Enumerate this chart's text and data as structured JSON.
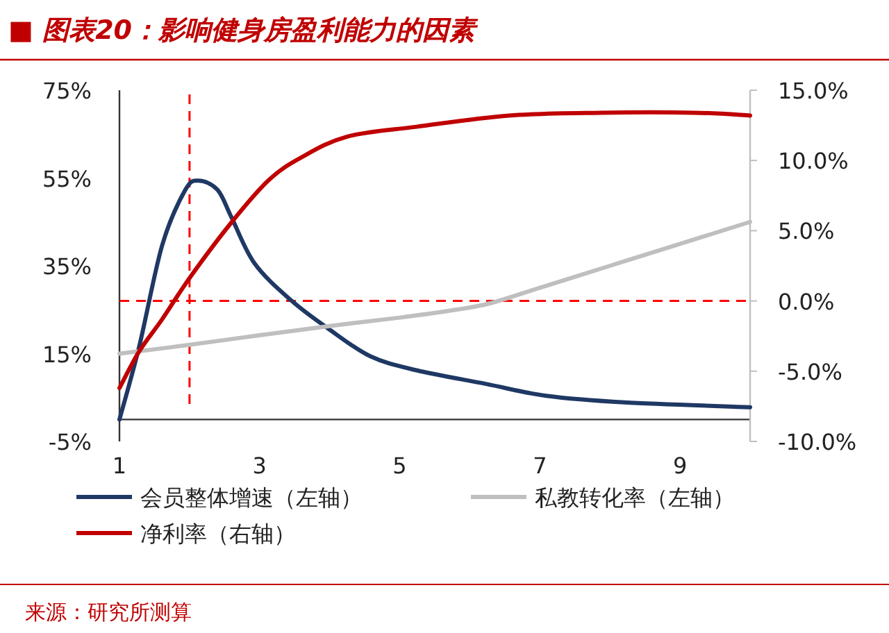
{
  "chart_data": {
    "type": "line",
    "title": "■ 图表20：影响健身房盈利能力的因素",
    "xlim": [
      1,
      10
    ],
    "xticks": [
      1,
      3,
      5,
      7,
      9
    ],
    "ylim": [
      -5,
      75
    ],
    "yticks": [
      {
        "value": -5,
        "label": "-5%"
      },
      {
        "value": 15,
        "label": "15%"
      },
      {
        "value": 35,
        "label": "35%"
      },
      {
        "value": 55,
        "label": "55%"
      },
      {
        "value": 75,
        "label": "75%"
      }
    ],
    "y2lim": [
      -10,
      15
    ],
    "y2ticks": [
      {
        "value": -10,
        "label": "-10.0%"
      },
      {
        "value": -5,
        "label": "-5.0%"
      },
      {
        "value": 0,
        "label": "0.0%"
      },
      {
        "value": 5,
        "label": "5.0%"
      },
      {
        "value": 10,
        "label": "10.0%"
      },
      {
        "value": 15,
        "label": "15.0%"
      }
    ],
    "series": [
      {
        "name": "会员整体增速（左轴）",
        "color": "#1f3864",
        "x": [
          1,
          1.28,
          1.61,
          1.94,
          2.13,
          2.4,
          2.6,
          2.93,
          3.46,
          3.98,
          4.58,
          5.24,
          6.23,
          7.09,
          8.21,
          10
        ],
        "values": [
          0,
          16.5,
          39.7,
          52.3,
          54.4,
          52.3,
          46,
          35.5,
          27,
          20.7,
          14.4,
          11.2,
          8.1,
          5.4,
          3.9,
          2.8
        ]
      },
      {
        "name": "私教转化率（左轴）",
        "color": "#bfbfbf",
        "x": [
          1,
          2,
          3,
          4,
          5,
          5.8,
          6.3,
          7,
          8,
          9,
          10
        ],
        "values": [
          15,
          17,
          19.2,
          21.3,
          23.2,
          25,
          26.5,
          30,
          35,
          40,
          45
        ]
      },
      {
        "name": "净利率（右轴）",
        "color": "#c00000",
        "axis": "y2",
        "x": [
          1,
          1.28,
          1.61,
          2.01,
          2.6,
          3.13,
          3.59,
          4.25,
          5.24,
          6.56,
          7.87,
          9.2,
          10
        ],
        "values": [
          -6.2,
          -3.6,
          -1.3,
          1.7,
          5.6,
          8.6,
          10.2,
          11.7,
          12.4,
          13.2,
          13.4,
          13.4,
          13.2
        ]
      }
    ],
    "ref_lines": [
      {
        "axis": "x",
        "value": 2,
        "color": "#ff0000",
        "line_style": "dashed"
      },
      {
        "axis": "y2",
        "value": 0,
        "color": "#ff0000",
        "line_style": "dashed"
      }
    ],
    "legend": "bottom",
    "grid": false,
    "annotations": [
      "来源：研究所测算"
    ]
  }
}
